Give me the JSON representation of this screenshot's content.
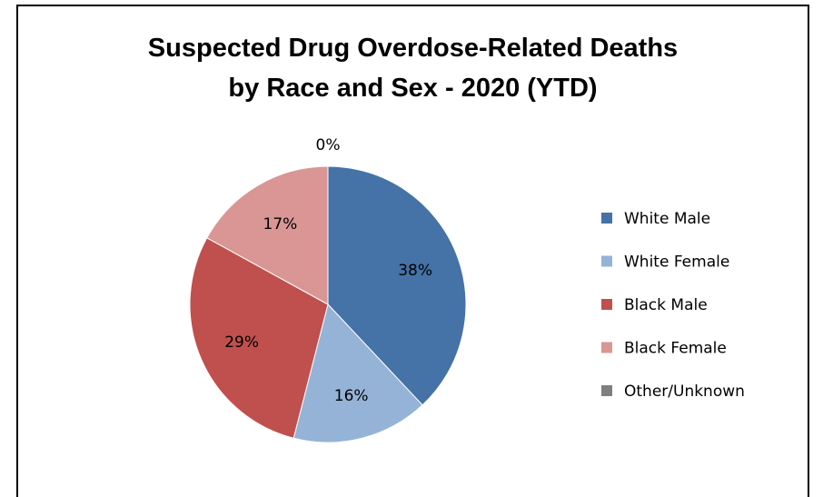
{
  "chart_data": {
    "type": "pie",
    "title_lines": [
      "Suspected Drug Overdose-Related Deaths",
      "by Race and Sex - 2020 (YTD)"
    ],
    "categories": [
      "White Male",
      "White Female",
      "Black Male",
      "Black Female",
      "Other/Unknown"
    ],
    "values": [
      38,
      16,
      29,
      17,
      0
    ],
    "value_labels": [
      "38%",
      "16%",
      "29%",
      "17%",
      "0%"
    ],
    "colors": [
      "#4572A7",
      "#95B3D7",
      "#C0504D",
      "#D99694",
      "#7F7F7F"
    ],
    "legend_position": "right"
  }
}
